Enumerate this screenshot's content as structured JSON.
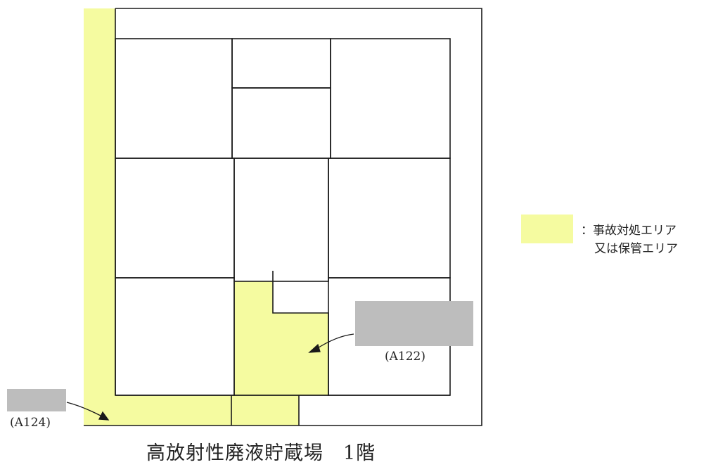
{
  "title": "高放射性廃液貯蔵場　1階",
  "legend": {
    "line1": "：事故対処エリア",
    "line2": "又は保管エリア",
    "color": "#f5fba0"
  },
  "labels": {
    "a122": "(A122)",
    "a124": "(A124)"
  },
  "colors": {
    "highlight": "#f5fba0",
    "redaction": "#bdbdbd",
    "line": "#1a1a1a"
  }
}
